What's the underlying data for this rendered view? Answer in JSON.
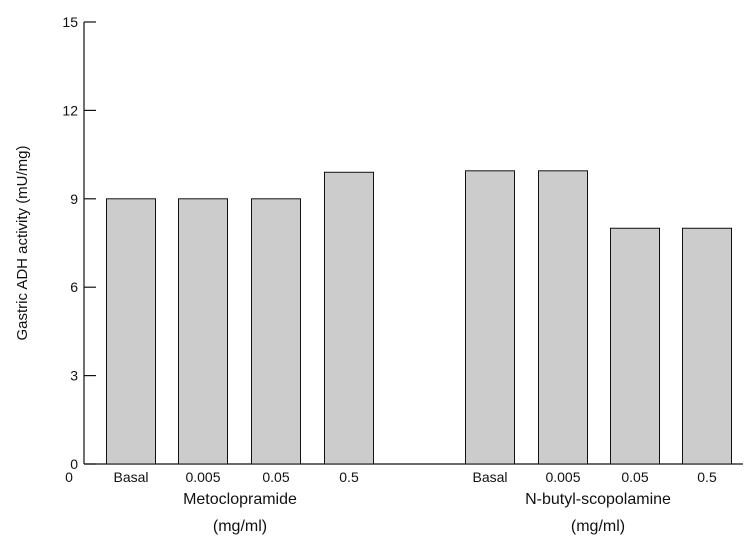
{
  "chart_data": {
    "type": "bar",
    "ylabel": "Gastric ADH activity (mU/mg)",
    "ylim": [
      0,
      15
    ],
    "yticks": [
      0,
      3,
      6,
      9,
      12,
      15
    ],
    "x_origin_label": "0",
    "grid": false,
    "bar_color": "#cccccc",
    "groups": [
      {
        "name_line1": "Metoclopramide",
        "name_line2": "(mg/ml)",
        "categories": [
          "Basal",
          "0.005",
          "0.05",
          "0.5"
        ],
        "values": [
          9.0,
          9.0,
          9.0,
          9.9
        ]
      },
      {
        "name_line1": "N-butyl-scopolamine",
        "name_line2": "(mg/ml)",
        "categories": [
          "Basal",
          "0.005",
          "0.05",
          "0.5"
        ],
        "values": [
          9.95,
          9.95,
          8.0,
          8.0
        ]
      }
    ]
  }
}
